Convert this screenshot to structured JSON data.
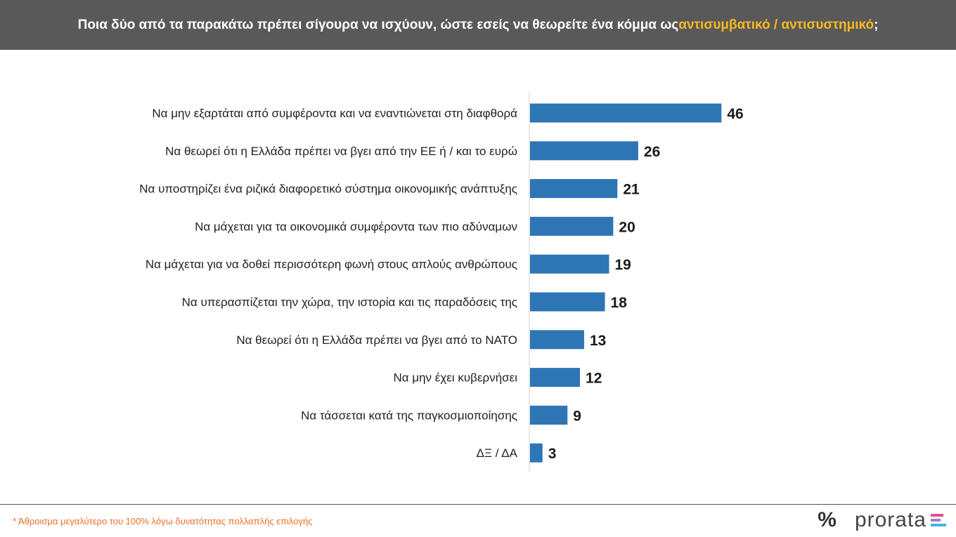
{
  "header": {
    "title_pre": "Ποια δύο από τα παρακάτω πρέπει σίγουρα να ισχύουν, ώστε εσείς να θεωρείτε ένα κόμμα ως ",
    "title_highlight": "αντισυμβατικό / αντισυστημικό",
    "title_post": ";"
  },
  "chart_data": {
    "type": "bar",
    "orientation": "horizontal",
    "categories": [
      "Να μην εξαρτάται από συμφέροντα και να εναντιώνεται στη διαφθορά",
      "Να θεωρεί ότι η Ελλάδα πρέπει να βγει από την ΕΕ ή / και το ευρώ",
      "Να υποστηρίζει ένα ριζικά διαφορετικό σύστημα οικονομικής ανάπτυξης",
      "Να μάχεται για τα οικονομικά συμφέροντα των πιο αδύναμων",
      "Να μάχεται για να δοθεί περισσότερη φωνή στους απλούς ανθρώπους",
      "Να υπερασπίζεται την χώρα, την ιστορία και τις παραδόσεις της",
      "Να θεωρεί ότι η Ελλάδα πρέπει να βγει από το ΝΑΤΟ",
      "Να μην έχει κυβερνήσει",
      "Να τάσσεται κατά της παγκοσμιοποίησης",
      "ΔΞ / ΔΑ"
    ],
    "values": [
      46,
      26,
      21,
      20,
      19,
      18,
      13,
      12,
      9,
      3
    ],
    "xlim": [
      0,
      100
    ],
    "bar_color": "#2e75b6",
    "grid": false
  },
  "footnote": "* Άθροισμα μεγαλύτερο του 100% λόγω δυνατότητας πολλαπλής επιλογής",
  "logo": {
    "mark": "%",
    "text": "prorata",
    "bar_colors": [
      "#e84d8a",
      "#9b7fd1",
      "#3fb6e0"
    ]
  },
  "colors": {
    "header_bg": "#595959",
    "highlight": "#f5b921",
    "footnote": "#e8702a"
  }
}
